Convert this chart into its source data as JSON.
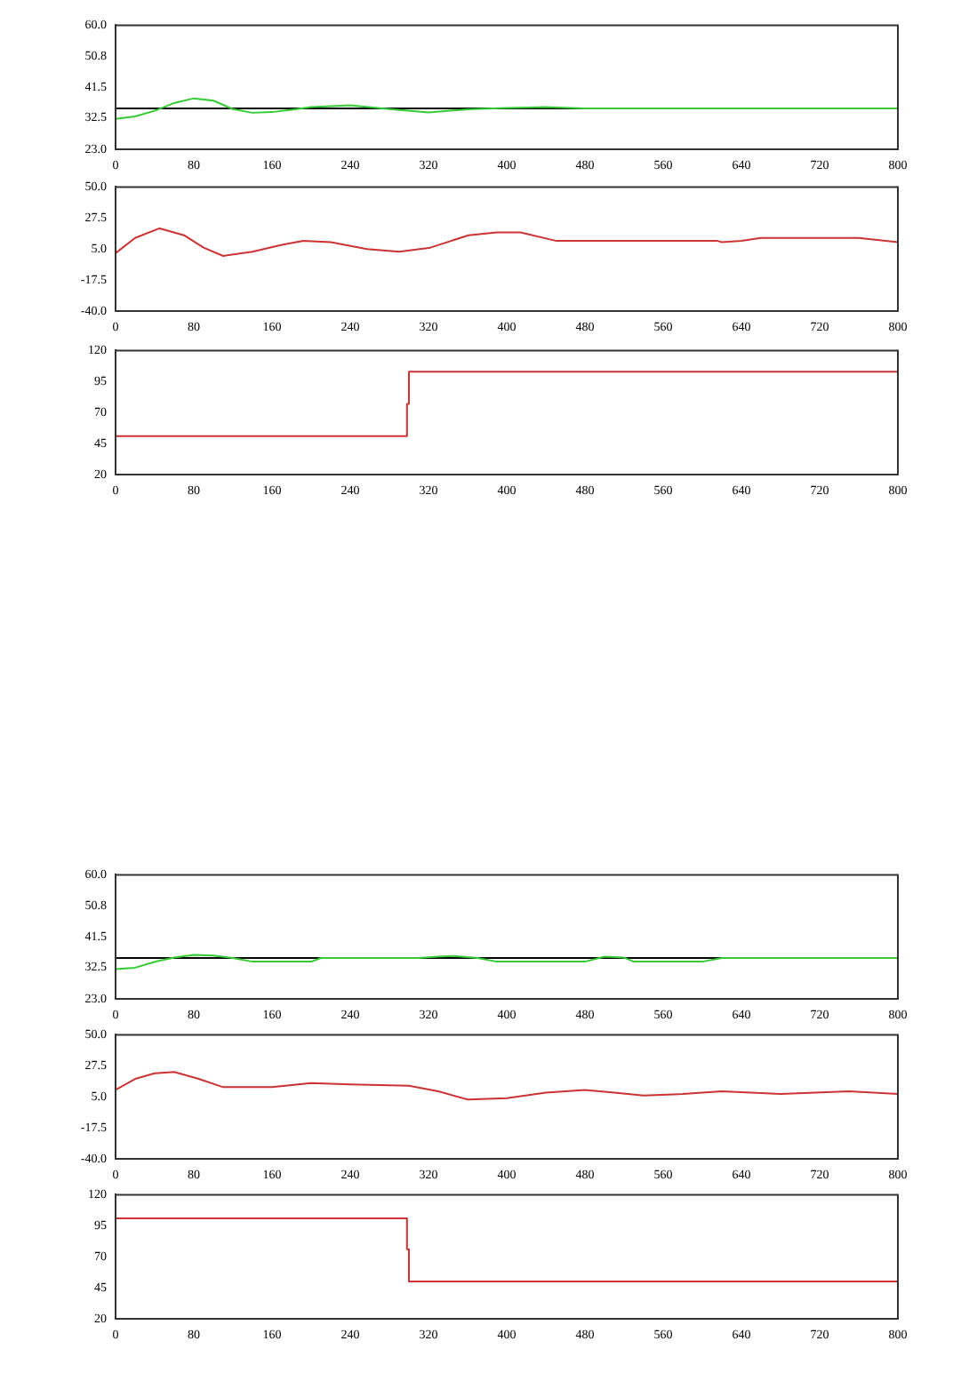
{
  "chart_data": [
    {
      "type": "line",
      "x": [
        0,
        20,
        40,
        60,
        80,
        100,
        120,
        140,
        160,
        180,
        200,
        240,
        280,
        320,
        360,
        400,
        440,
        480,
        800
      ],
      "series": [
        {
          "color": "#33cc33",
          "values": [
            32.1,
            32.8,
            34.5,
            36.8,
            38.2,
            37.5,
            35.0,
            33.9,
            34.1,
            34.8,
            35.6,
            36.1,
            35.0,
            34.0,
            34.9,
            35.3,
            35.6,
            35.2,
            35.2
          ]
        }
      ],
      "ylim": [
        23,
        60
      ],
      "yticks": [
        {
          "value": 23,
          "label": "23.0"
        },
        {
          "value": 32.5,
          "label": "32.5"
        },
        {
          "value": 41.5,
          "label": "41.5"
        },
        {
          "value": 50.8,
          "label": "50.8"
        },
        {
          "value": 60,
          "label": "60.0"
        }
      ],
      "xlim": [
        0,
        800
      ],
      "xticks": [
        0,
        80,
        160,
        240,
        320,
        400,
        480,
        560,
        640,
        720,
        800
      ],
      "ref_lines": [
        {
          "axis": "y",
          "value": 35.2,
          "color": "#000000"
        }
      ]
    },
    {
      "type": "line",
      "x": [
        0,
        20,
        45,
        70,
        90,
        110,
        140,
        170,
        192,
        220,
        257,
        290,
        322,
        361,
        390,
        414,
        450,
        615,
        620,
        640,
        660,
        760,
        800
      ],
      "series": [
        {
          "color": "#cc3333",
          "values": [
            2,
            13,
            20,
            15,
            6,
            0,
            3,
            8,
            11,
            10,
            5,
            3,
            6,
            15,
            17,
            17,
            11,
            11,
            10,
            11,
            13,
            13,
            10
          ]
        }
      ],
      "ylim": [
        -40,
        50
      ],
      "yticks": [
        {
          "value": -40,
          "label": "-40.0"
        },
        {
          "value": -17.5,
          "label": "-17.5"
        },
        {
          "value": 5,
          "label": "5.0"
        },
        {
          "value": 27.5,
          "label": "27.5"
        },
        {
          "value": 50,
          "label": "50.0"
        }
      ],
      "xlim": [
        0,
        800
      ],
      "xticks": [
        0,
        80,
        160,
        240,
        320,
        400,
        480,
        560,
        640,
        720,
        800
      ]
    },
    {
      "type": "step",
      "x": [
        0,
        298,
        300,
        800
      ],
      "series": [
        {
          "color": "#cc3333",
          "values": [
            51,
            77,
            103,
            103
          ]
        }
      ],
      "ylim": [
        20,
        120
      ],
      "yticks": [
        20,
        45,
        70,
        95,
        120
      ],
      "xlim": [
        0,
        800
      ],
      "xticks": [
        0,
        80,
        160,
        240,
        320,
        400,
        480,
        560,
        640,
        720,
        800
      ]
    },
    {
      "type": "line",
      "x": [
        0,
        20,
        42,
        60,
        80,
        100,
        120,
        140,
        200,
        210,
        310,
        330,
        346,
        370,
        390,
        480,
        500,
        520,
        530,
        600,
        620,
        800
      ],
      "series": [
        {
          "color": "#33cc33",
          "values": [
            31.9,
            32.3,
            34.2,
            35.3,
            36.1,
            35.9,
            35.2,
            34.1,
            34.1,
            35.2,
            35.2,
            35.6,
            35.8,
            35.2,
            34.1,
            34.1,
            35.6,
            35.3,
            34.1,
            34.1,
            35.2,
            35.2
          ]
        }
      ],
      "ylim": [
        23,
        60
      ],
      "yticks": [
        {
          "value": 23,
          "label": "23.0"
        },
        {
          "value": 32.5,
          "label": "32.5"
        },
        {
          "value": 41.5,
          "label": "41.5"
        },
        {
          "value": 50.8,
          "label": "50.8"
        },
        {
          "value": 60,
          "label": "60.0"
        }
      ],
      "xlim": [
        0,
        800
      ],
      "xticks": [
        0,
        80,
        160,
        240,
        320,
        400,
        480,
        560,
        640,
        720,
        800
      ],
      "ref_lines": [
        {
          "axis": "y",
          "value": 35.2,
          "color": "#000000"
        }
      ]
    },
    {
      "type": "line",
      "x": [
        0,
        20,
        40,
        60,
        85,
        110,
        160,
        200,
        240,
        300,
        330,
        360,
        400,
        440,
        480,
        510,
        540,
        580,
        620,
        680,
        750,
        800
      ],
      "series": [
        {
          "color": "#cc3333",
          "values": [
            10,
            18,
            22,
            23,
            18,
            12,
            12,
            15,
            14,
            13,
            9,
            3,
            4,
            8,
            10,
            8,
            6,
            7,
            9,
            7,
            9,
            7
          ]
        }
      ],
      "ylim": [
        -40,
        50
      ],
      "yticks": [
        {
          "value": -40,
          "label": "-40.0"
        },
        {
          "value": -17.5,
          "label": "-17.5"
        },
        {
          "value": 5,
          "label": "5.0"
        },
        {
          "value": 27.5,
          "label": "27.5"
        },
        {
          "value": 50,
          "label": "50.0"
        }
      ],
      "xlim": [
        0,
        800
      ],
      "xticks": [
        0,
        80,
        160,
        240,
        320,
        400,
        480,
        560,
        640,
        720,
        800
      ]
    },
    {
      "type": "step",
      "x": [
        0,
        298,
        300,
        800
      ],
      "series": [
        {
          "color": "#cc3333",
          "values": [
            101,
            76,
            50,
            50
          ]
        }
      ],
      "ylim": [
        20,
        120
      ],
      "yticks": [
        20,
        45,
        70,
        95,
        120
      ],
      "xlim": [
        0,
        800
      ],
      "xticks": [
        0,
        80,
        160,
        240,
        320,
        400,
        480,
        560,
        640,
        720,
        800
      ]
    }
  ]
}
